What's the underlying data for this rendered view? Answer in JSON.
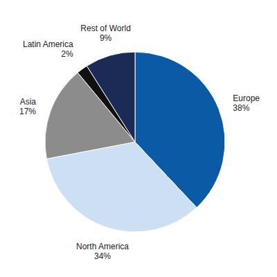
{
  "chart_data": {
    "type": "pie",
    "categories": [
      "Europe",
      "North America",
      "Asia",
      "Latin America",
      "Rest of World"
    ],
    "values": [
      38,
      34,
      17,
      2,
      9
    ],
    "value_labels": [
      "38%",
      "34%",
      "17%",
      "2%",
      "9%"
    ],
    "colors": [
      "#0b5aa6",
      "#cde0f3",
      "#8c8c8c",
      "#111111",
      "#1c2b55"
    ],
    "data_labels": true
  }
}
